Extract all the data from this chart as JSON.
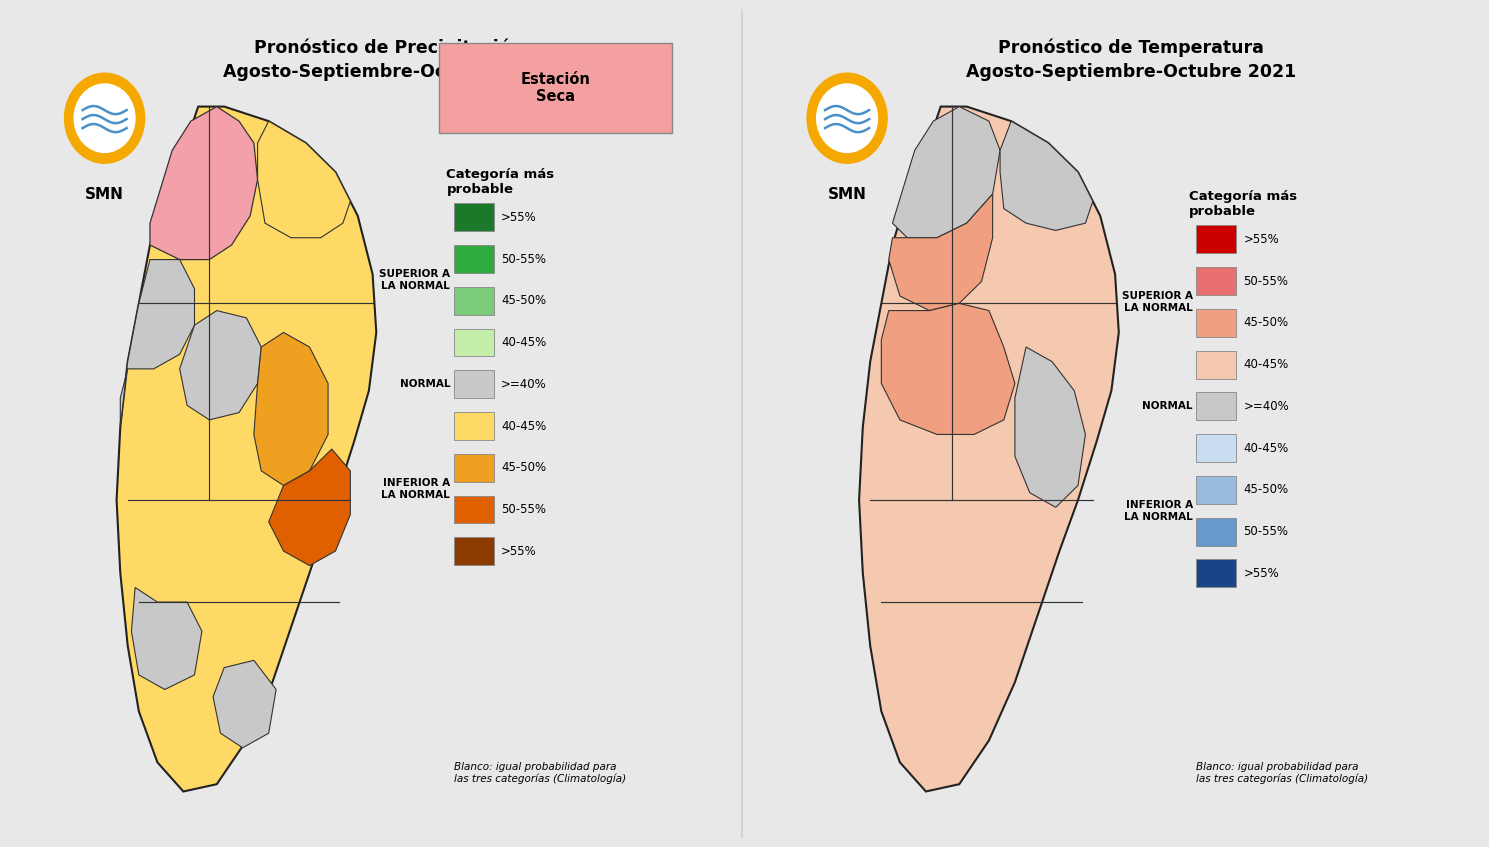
{
  "title1_line1": "Pronóstico de Precipitación",
  "title1_line2": "Agosto-Septiembre-Octubre 2021",
  "title2_line1": "Pronóstico de Temperatura",
  "title2_line2": "Agosto-Septiembre-Octubre 2021",
  "bg_color": "#e8e8e8",
  "panel_bg": "#ffffff",
  "smn_outer_color": "#f5a800",
  "smn_inner_color": "#4a90c8",
  "footnote": "Blanco: igual probabilidad para\nlas tres categorías (Climatología)",
  "precip_season_label": "Estación\nSeca",
  "precip_season_color": "#f4a0a0",
  "legend_header": "Categoría más\nprobable",
  "precip_colors": [
    "#1a7a2a",
    "#2eaa3e",
    "#7acc7a",
    "#c5eeaa",
    "#c8c8c8",
    "#ffd966",
    "#f0a020",
    "#e06000",
    "#8b3a00"
  ],
  "precip_labels": [
    ">55%",
    "50-55%",
    "45-50%",
    "40-45%",
    ">=40%",
    "40-45%",
    "45-50%",
    "50-55%",
    ">55%"
  ],
  "temp_colors": [
    "#cc0000",
    "#e87070",
    "#f0a080",
    "#f5c8b0",
    "#c8c8c8",
    "#c8ddf0",
    "#99bbdd",
    "#6699cc",
    "#1a4488"
  ],
  "temp_labels": [
    ">55%",
    "50-55%",
    "45-50%",
    "40-45%",
    ">=40%",
    "40-45%",
    "45-50%",
    "50-55%",
    ">55%"
  ],
  "group_labels": [
    "SUPERIOR A\nLA NORMAL",
    "NORMAL",
    "INFERIOR A\nLA NORMAL"
  ]
}
